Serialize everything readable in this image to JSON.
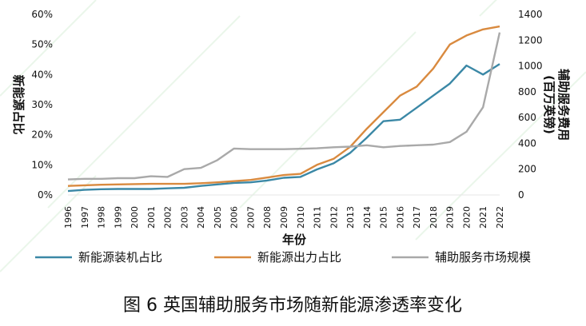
{
  "chart_data": {
    "type": "line",
    "title": "",
    "caption": "图 6  英国辅助服务市场随新能源渗透率变化",
    "xlabel": "年份",
    "ylabel_left": "新能源占比",
    "ylabel_right": "辅助服务费用\n(百万英镑)",
    "x": [
      "1996",
      "1997",
      "1998",
      "1999",
      "2000",
      "2001",
      "2002",
      "2003",
      "2004",
      "2005",
      "2006",
      "2007",
      "2008",
      "2009",
      "2010",
      "2011",
      "2012",
      "2013",
      "2014",
      "2015",
      "2016",
      "2017",
      "2018",
      "2019",
      "2020",
      "2021",
      "2022"
    ],
    "y_left_ticks": [
      "0%",
      "10%",
      "20%",
      "30%",
      "40%",
      "50%",
      "60%"
    ],
    "y_left_range": [
      0,
      0.6
    ],
    "y_right_ticks": [
      "0",
      "200",
      "400",
      "600",
      "800",
      "1000",
      "1200",
      "1400"
    ],
    "y_right_range": [
      0,
      1400
    ],
    "series": [
      {
        "name": "新能源装机占比",
        "axis": "left",
        "color": "#3b88a6",
        "values": [
          0.013,
          0.017,
          0.019,
          0.02,
          0.02,
          0.02,
          0.022,
          0.024,
          0.03,
          0.035,
          0.04,
          0.042,
          0.048,
          0.057,
          0.06,
          0.085,
          0.105,
          0.14,
          0.19,
          0.245,
          0.25,
          0.29,
          0.33,
          0.37,
          0.43,
          0.4,
          0.435
        ]
      },
      {
        "name": "新能源出力占比",
        "axis": "left",
        "color": "#d98a3f",
        "values": [
          0.03,
          0.032,
          0.034,
          0.035,
          0.036,
          0.037,
          0.037,
          0.037,
          0.039,
          0.042,
          0.046,
          0.05,
          0.058,
          0.066,
          0.07,
          0.1,
          0.12,
          0.16,
          0.22,
          0.275,
          0.33,
          0.36,
          0.42,
          0.5,
          0.53,
          0.55,
          0.56
        ]
      },
      {
        "name": "辅助服务市场规模",
        "axis": "right",
        "color": "#a9a9a9",
        "values": [
          120,
          125,
          125,
          130,
          130,
          145,
          140,
          200,
          210,
          270,
          360,
          355,
          355,
          355,
          358,
          362,
          370,
          375,
          385,
          370,
          380,
          385,
          390,
          410,
          490,
          680,
          1260
        ]
      }
    ],
    "legend_position": "bottom",
    "grid": false
  }
}
